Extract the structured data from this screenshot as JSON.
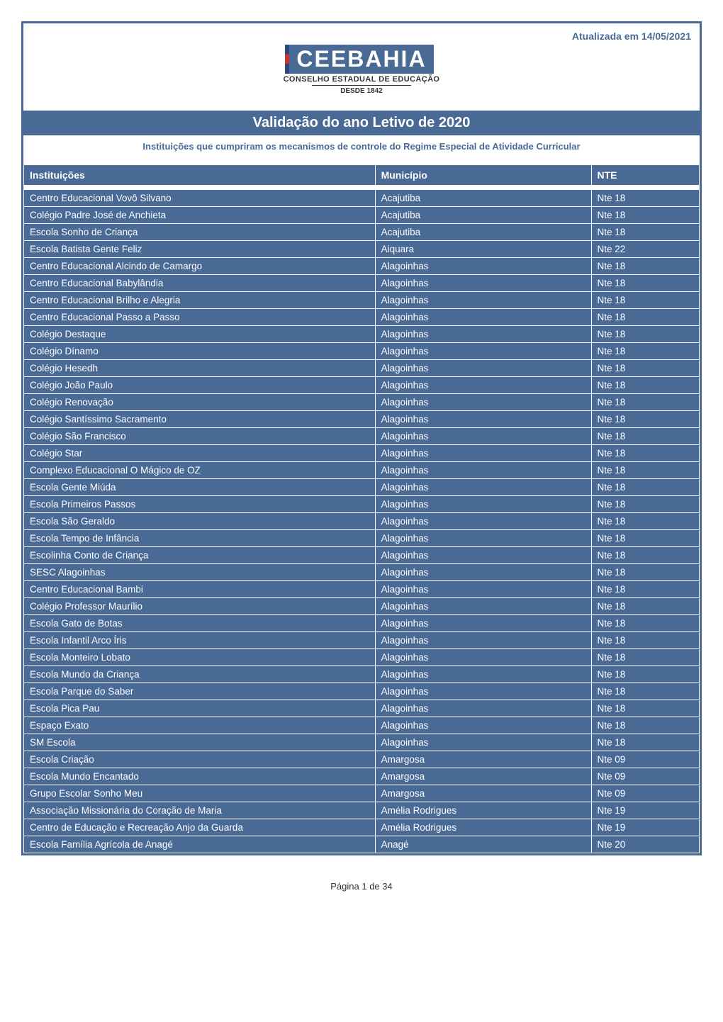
{
  "update_label": "Atualizada em 14/05/2021",
  "logo": {
    "main": "CEEBAHIA",
    "sub": "CONSELHO ESTADUAL DE EDUCAÇÃO",
    "since": "DESDE 1842"
  },
  "title": "Validação do ano Letivo de 2020",
  "subtitle": "Instituições que cumpriram os mecanismos de controle do Regime Especial de Atividade Curricular",
  "columns": {
    "inst": "Instituições",
    "mun": "Município",
    "nte": "NTE"
  },
  "footer": "Página 1 de 34",
  "colors": {
    "primary": "#4a6a96",
    "white": "#ffffff",
    "text_dark": "#333333"
  },
  "rows": [
    {
      "inst": "Centro Educacional Vovô Silvano",
      "mun": "Acajutiba",
      "nte": "Nte 18"
    },
    {
      "inst": "Colégio Padre José de Anchieta",
      "mun": "Acajutiba",
      "nte": "Nte 18"
    },
    {
      "inst": "Escola Sonho de Criança",
      "mun": "Acajutiba",
      "nte": "Nte 18"
    },
    {
      "inst": "Escola Batista Gente Feliz",
      "mun": "Aiquara",
      "nte": "Nte 22"
    },
    {
      "inst": "Centro Educacional Alcindo de Camargo",
      "mun": "Alagoinhas",
      "nte": "Nte 18"
    },
    {
      "inst": "Centro Educacional Babylândia",
      "mun": "Alagoinhas",
      "nte": "Nte 18"
    },
    {
      "inst": "Centro Educacional Brilho e Alegria",
      "mun": "Alagoinhas",
      "nte": "Nte 18"
    },
    {
      "inst": "Centro Educacional Passo a Passo",
      "mun": "Alagoinhas",
      "nte": "Nte 18"
    },
    {
      "inst": "Colégio Destaque",
      "mun": "Alagoinhas",
      "nte": "Nte 18"
    },
    {
      "inst": "Colégio Dínamo",
      "mun": "Alagoinhas",
      "nte": "Nte 18"
    },
    {
      "inst": "Colégio Hesedh",
      "mun": "Alagoinhas",
      "nte": "Nte 18"
    },
    {
      "inst": "Colégio João Paulo",
      "mun": "Alagoinhas",
      "nte": "Nte 18"
    },
    {
      "inst": "Colégio Renovação",
      "mun": "Alagoinhas",
      "nte": "Nte 18"
    },
    {
      "inst": "Colégio Santíssimo Sacramento",
      "mun": "Alagoinhas",
      "nte": "Nte 18"
    },
    {
      "inst": "Colégio São Francisco",
      "mun": "Alagoinhas",
      "nte": "Nte 18"
    },
    {
      "inst": "Colégio Star",
      "mun": "Alagoinhas",
      "nte": "Nte 18"
    },
    {
      "inst": "Complexo Educacional O Mágico de OZ",
      "mun": "Alagoinhas",
      "nte": "Nte 18"
    },
    {
      "inst": "Escola Gente Miúda",
      "mun": "Alagoinhas",
      "nte": "Nte 18"
    },
    {
      "inst": "Escola Primeiros Passos",
      "mun": "Alagoinhas",
      "nte": "Nte 18"
    },
    {
      "inst": "Escola São Geraldo",
      "mun": "Alagoinhas",
      "nte": "Nte 18"
    },
    {
      "inst": "Escola Tempo de Infância",
      "mun": "Alagoinhas",
      "nte": "Nte 18"
    },
    {
      "inst": "Escolinha Conto de Criança",
      "mun": "Alagoinhas",
      "nte": "Nte 18"
    },
    {
      "inst": "SESC Alagoinhas",
      "mun": "Alagoinhas",
      "nte": "Nte 18"
    },
    {
      "inst": "Centro Educacional Bambi",
      "mun": "Alagoinhas",
      "nte": "Nte 18"
    },
    {
      "inst": "Colégio Professor Maurílio",
      "mun": "Alagoinhas",
      "nte": "Nte 18"
    },
    {
      "inst": "Escola Gato de Botas",
      "mun": "Alagoinhas",
      "nte": "Nte 18"
    },
    {
      "inst": "Escola Infantil Arco Íris",
      "mun": "Alagoinhas",
      "nte": "Nte 18"
    },
    {
      "inst": "Escola Monteiro Lobato",
      "mun": "Alagoinhas",
      "nte": "Nte 18"
    },
    {
      "inst": "Escola Mundo da Criança",
      "mun": "Alagoinhas",
      "nte": "Nte 18"
    },
    {
      "inst": "Escola Parque do Saber",
      "mun": "Alagoinhas",
      "nte": "Nte 18"
    },
    {
      "inst": "Escola Pica Pau",
      "mun": "Alagoinhas",
      "nte": "Nte 18"
    },
    {
      "inst": "Espaço Exato",
      "mun": "Alagoinhas",
      "nte": "Nte 18"
    },
    {
      "inst": "SM Escola",
      "mun": "Alagoinhas",
      "nte": "Nte 18"
    },
    {
      "inst": "Escola Criação",
      "mun": "Amargosa",
      "nte": "Nte 09"
    },
    {
      "inst": "Escola Mundo Encantado",
      "mun": "Amargosa",
      "nte": "Nte 09"
    },
    {
      "inst": "Grupo Escolar Sonho Meu",
      "mun": "Amargosa",
      "nte": "Nte 09"
    },
    {
      "inst": "Associação Missionária do Coração de Maria",
      "mun": "Amélia Rodrigues",
      "nte": "Nte 19"
    },
    {
      "inst": "Centro de Educação e Recreação Anjo da Guarda",
      "mun": "Amélia Rodrigues",
      "nte": "Nte 19"
    },
    {
      "inst": "Escola Família Agrícola de Anagé",
      "mun": "Anagé",
      "nte": "Nte 20"
    }
  ]
}
